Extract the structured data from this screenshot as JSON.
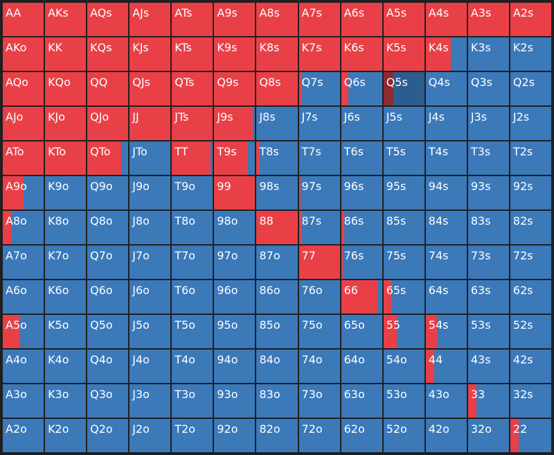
{
  "colors": {
    "raise": "#e94048",
    "fold": "#3b79b9",
    "dark_raise": "#8f2a2f",
    "dark_fold": "#2b5e8f",
    "grid_line": "#1f1f1f"
  },
  "hands": [
    [
      "AA",
      "AKs",
      "AQs",
      "AJs",
      "ATs",
      "A9s",
      "A8s",
      "A7s",
      "A6s",
      "A5s",
      "A4s",
      "A3s",
      "A2s"
    ],
    [
      "AKo",
      "KK",
      "KQs",
      "KJs",
      "KTs",
      "K9s",
      "K8s",
      "K7s",
      "K6s",
      "K5s",
      "K4s",
      "K3s",
      "K2s"
    ],
    [
      "AQo",
      "KQo",
      "QQ",
      "QJs",
      "QTs",
      "Q9s",
      "Q8s",
      "Q7s",
      "Q6s",
      "Q5s",
      "Q4s",
      "Q3s",
      "Q2s"
    ],
    [
      "AJo",
      "KJo",
      "QJo",
      "JJ",
      "JTs",
      "J9s",
      "J8s",
      "J7s",
      "J6s",
      "J5s",
      "J4s",
      "J3s",
      "J2s"
    ],
    [
      "ATo",
      "KTo",
      "QTo",
      "JTo",
      "TT",
      "T9s",
      "T8s",
      "T7s",
      "T6s",
      "T5s",
      "T4s",
      "T3s",
      "T2s"
    ],
    [
      "A9o",
      "K9o",
      "Q9o",
      "J9o",
      "T9o",
      "99",
      "98s",
      "97s",
      "96s",
      "95s",
      "94s",
      "93s",
      "92s"
    ],
    [
      "A8o",
      "K8o",
      "Q8o",
      "J8o",
      "T8o",
      "98o",
      "88",
      "87s",
      "86s",
      "85s",
      "84s",
      "83s",
      "82s"
    ],
    [
      "A7o",
      "K7o",
      "Q7o",
      "J7o",
      "T7o",
      "97o",
      "87o",
      "77",
      "76s",
      "75s",
      "74s",
      "73s",
      "72s"
    ],
    [
      "A6o",
      "K6o",
      "Q6o",
      "J6o",
      "T6o",
      "96o",
      "86o",
      "76o",
      "66",
      "65s",
      "64s",
      "63s",
      "62s"
    ],
    [
      "A5o",
      "K5o",
      "Q5o",
      "J5o",
      "T5o",
      "95o",
      "85o",
      "75o",
      "65o",
      "55",
      "54s",
      "53s",
      "52s"
    ],
    [
      "A4o",
      "K4o",
      "Q4o",
      "J4o",
      "T4o",
      "94o",
      "84o",
      "74o",
      "64o",
      "54o",
      "44",
      "43s",
      "42s"
    ],
    [
      "A3o",
      "K3o",
      "Q3o",
      "J3o",
      "T3o",
      "93o",
      "83o",
      "73o",
      "63o",
      "53o",
      "43o",
      "33",
      "32s"
    ],
    [
      "A2o",
      "K2o",
      "Q2o",
      "J2o",
      "T2o",
      "92o",
      "82o",
      "72o",
      "62o",
      "52o",
      "42o",
      "32o",
      "22"
    ]
  ],
  "raise_fraction": [
    [
      1,
      1,
      1,
      1,
      1,
      1,
      1,
      1,
      1,
      1,
      1,
      1,
      1
    ],
    [
      1,
      1,
      1,
      1,
      1,
      1,
      1,
      1,
      1,
      1,
      0.62,
      0,
      0
    ],
    [
      1,
      1,
      1,
      1,
      1,
      1,
      1,
      0.07,
      0.18,
      0.25,
      0,
      0,
      0
    ],
    [
      1,
      1,
      1,
      1,
      1,
      0.95,
      0,
      0,
      0,
      0,
      0,
      0,
      0
    ],
    [
      1,
      1,
      0.82,
      0,
      0.95,
      0.82,
      0.07,
      0,
      0,
      0,
      0,
      0,
      0
    ],
    [
      0.5,
      0,
      0,
      0,
      0,
      1,
      0,
      0.04,
      0,
      0,
      0,
      0,
      0
    ],
    [
      0.2,
      0,
      0,
      0,
      0,
      0,
      1,
      0.08,
      0.08,
      0,
      0,
      0,
      0
    ],
    [
      0,
      0,
      0,
      0,
      0,
      0,
      0,
      1,
      0.04,
      0,
      0,
      0,
      0
    ],
    [
      0,
      0,
      0,
      0,
      0,
      0,
      0,
      0,
      0.88,
      0.2,
      0,
      0,
      0
    ],
    [
      0.42,
      0,
      0,
      0,
      0,
      0,
      0,
      0,
      0,
      0.32,
      0.28,
      0,
      0
    ],
    [
      0,
      0,
      0,
      0,
      0,
      0,
      0,
      0,
      0,
      0,
      0.2,
      0,
      0
    ],
    [
      0,
      0,
      0,
      0,
      0,
      0,
      0,
      0,
      0,
      0,
      0,
      0.2,
      0
    ],
    [
      0,
      0,
      0,
      0,
      0,
      0,
      0,
      0,
      0,
      0,
      0,
      0,
      0.2
    ]
  ],
  "highlight_cell": {
    "hand": "Q5s"
  }
}
